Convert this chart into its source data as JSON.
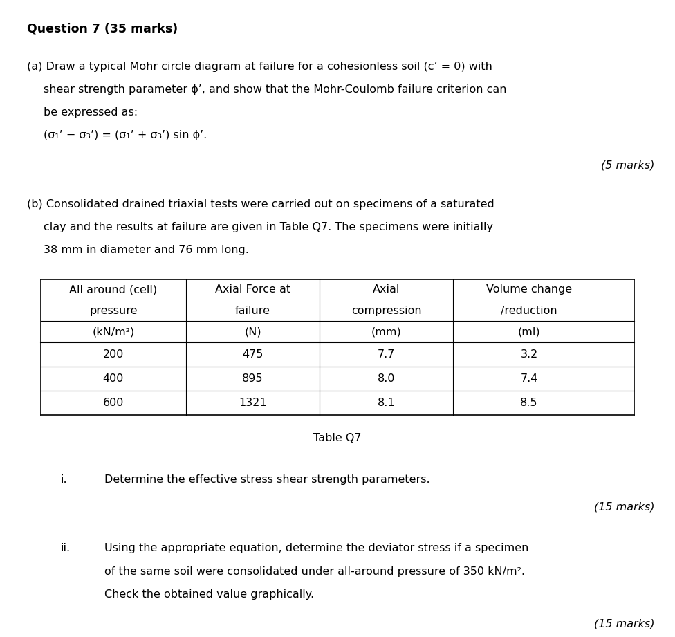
{
  "title": "Question 7 (35 marks)",
  "part_a_line1": "(a) Draw a typical Mohr circle diagram at failure for a cohesionless soil (",
  "part_a_line1b": "c’ = 0) with",
  "part_a_line2": "    shear strength parameter ϕ’, and show that the Mohr-Coulomb failure criterion can",
  "part_a_line3": "    be expressed as:",
  "part_a_formula": "    (σ₁’ − σ₃’) = (σ₁’ + σ₃’) sin ϕ’.",
  "part_a_marks": "(5 marks)",
  "part_b_line1": "(b) Consolidated drained triaxial tests were carried out on specimens of a saturated",
  "part_b_line2": "    clay and the results at failure are given in Table Q7. The specimens were initially",
  "part_b_line3": "    38 mm in diameter and 76 mm long.",
  "table_col1_header": [
    "All around (cell)",
    "pressure",
    "(kN/m²)"
  ],
  "table_col2_header": [
    "Axial Force at",
    "failure",
    "(N)"
  ],
  "table_col3_header": [
    "Axial",
    "compression",
    "(mm)"
  ],
  "table_col4_header": [
    "Volume change",
    "/reduction",
    "(ml)"
  ],
  "table_data": [
    [
      "200",
      "475",
      "7.7",
      "3.2"
    ],
    [
      "400",
      "895",
      "8.0",
      "7.4"
    ],
    [
      "600",
      "1321",
      "8.1",
      "8.5"
    ]
  ],
  "table_caption": "Table Q7",
  "part_i_label": "i.",
  "part_i_text": "Determine the effective stress shear strength parameters.",
  "part_i_marks": "(15 marks)",
  "part_ii_label": "ii.",
  "part_ii_lines": [
    "Using the appropriate equation, determine the deviator stress if a specimen",
    "of the same soil were consolidated under all-around pressure of 350 kN/m².",
    "Check the obtained value graphically."
  ],
  "part_ii_marks": "(15 marks)",
  "bg": "#ffffff",
  "fg": "#000000"
}
